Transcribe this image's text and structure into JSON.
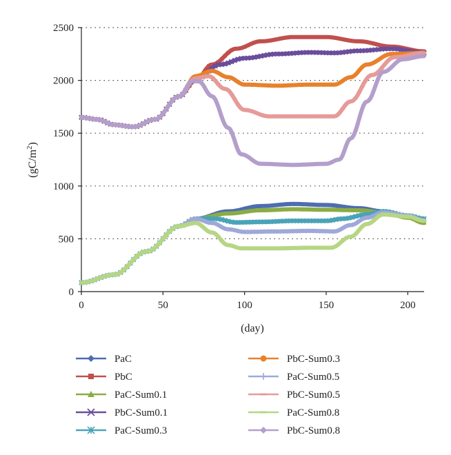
{
  "chart_data": {
    "type": "line",
    "title": "",
    "xlabel": "(day)",
    "ylabel_main": "(gC/m",
    "ylabel_sup": "2",
    "ylabel_close": ")",
    "xlim": [
      0,
      210
    ],
    "ylim": [
      0,
      2500
    ],
    "xticks": [
      0,
      50,
      100,
      150,
      200
    ],
    "yticks": [
      0,
      500,
      1000,
      1500,
      2000,
      2500
    ],
    "grid": "horizontal dotted",
    "legend_placement": "bottom",
    "series": [
      {
        "name": "PaC",
        "color": "#4e6db1",
        "marker": "diamond",
        "points": [
          [
            0,
            85
          ],
          [
            20,
            160
          ],
          [
            40,
            380
          ],
          [
            60,
            620
          ],
          [
            70,
            690
          ],
          [
            90,
            760
          ],
          [
            110,
            810
          ],
          [
            130,
            830
          ],
          [
            150,
            820
          ],
          [
            170,
            790
          ],
          [
            185,
            760
          ],
          [
            200,
            705
          ],
          [
            210,
            665
          ]
        ]
      },
      {
        "name": "PbC",
        "color": "#c0504d",
        "marker": "square",
        "points": [
          [
            0,
            1650
          ],
          [
            10,
            1630
          ],
          [
            20,
            1580
          ],
          [
            32,
            1560
          ],
          [
            45,
            1630
          ],
          [
            60,
            1850
          ],
          [
            70,
            2000
          ],
          [
            80,
            2150
          ],
          [
            95,
            2300
          ],
          [
            110,
            2370
          ],
          [
            130,
            2410
          ],
          [
            150,
            2410
          ],
          [
            170,
            2370
          ],
          [
            190,
            2320
          ],
          [
            210,
            2275
          ]
        ]
      },
      {
        "name": "PaC-Sum0.1",
        "color": "#8bac45",
        "marker": "triangle",
        "points": [
          [
            0,
            85
          ],
          [
            20,
            160
          ],
          [
            40,
            380
          ],
          [
            60,
            620
          ],
          [
            70,
            690
          ],
          [
            90,
            740
          ],
          [
            110,
            770
          ],
          [
            130,
            780
          ],
          [
            150,
            775
          ],
          [
            170,
            770
          ],
          [
            185,
            750
          ],
          [
            200,
            700
          ],
          [
            210,
            650
          ]
        ]
      },
      {
        "name": "PbC-Sum0.1",
        "color": "#6a4e9b",
        "marker": "x",
        "points": [
          [
            0,
            1650
          ],
          [
            10,
            1630
          ],
          [
            20,
            1580
          ],
          [
            32,
            1560
          ],
          [
            45,
            1630
          ],
          [
            60,
            1850
          ],
          [
            70,
            2010
          ],
          [
            85,
            2150
          ],
          [
            100,
            2210
          ],
          [
            120,
            2250
          ],
          [
            140,
            2265
          ],
          [
            155,
            2260
          ],
          [
            170,
            2280
          ],
          [
            190,
            2300
          ],
          [
            210,
            2260
          ]
        ]
      },
      {
        "name": "PaC-Sum0.3",
        "color": "#4aa3b8",
        "marker": "asterisk",
        "points": [
          [
            0,
            85
          ],
          [
            20,
            160
          ],
          [
            40,
            380
          ],
          [
            60,
            620
          ],
          [
            70,
            690
          ],
          [
            82,
            690
          ],
          [
            95,
            655
          ],
          [
            110,
            660
          ],
          [
            130,
            670
          ],
          [
            150,
            670
          ],
          [
            160,
            690
          ],
          [
            175,
            730
          ],
          [
            185,
            760
          ],
          [
            200,
            720
          ],
          [
            210,
            690
          ]
        ]
      },
      {
        "name": "PbC-Sum0.3",
        "color": "#e8812c",
        "marker": "circle",
        "points": [
          [
            0,
            1650
          ],
          [
            10,
            1630
          ],
          [
            20,
            1580
          ],
          [
            32,
            1560
          ],
          [
            45,
            1630
          ],
          [
            60,
            1850
          ],
          [
            70,
            2040
          ],
          [
            80,
            2090
          ],
          [
            90,
            2030
          ],
          [
            100,
            1960
          ],
          [
            120,
            1950
          ],
          [
            140,
            1960
          ],
          [
            155,
            1960
          ],
          [
            165,
            2030
          ],
          [
            175,
            2150
          ],
          [
            190,
            2250
          ],
          [
            210,
            2260
          ]
        ]
      },
      {
        "name": "PaC-Sum0.5",
        "color": "#9ea9d9",
        "marker": "plus",
        "points": [
          [
            0,
            85
          ],
          [
            20,
            160
          ],
          [
            40,
            380
          ],
          [
            60,
            620
          ],
          [
            70,
            690
          ],
          [
            80,
            650
          ],
          [
            90,
            590
          ],
          [
            100,
            565
          ],
          [
            120,
            570
          ],
          [
            140,
            575
          ],
          [
            155,
            570
          ],
          [
            165,
            630
          ],
          [
            175,
            700
          ],
          [
            185,
            750
          ],
          [
            200,
            720
          ],
          [
            210,
            675
          ]
        ]
      },
      {
        "name": "PbC-Sum0.5",
        "color": "#e59b98",
        "marker": "dash",
        "points": [
          [
            0,
            1650
          ],
          [
            10,
            1630
          ],
          [
            20,
            1580
          ],
          [
            32,
            1560
          ],
          [
            45,
            1630
          ],
          [
            60,
            1850
          ],
          [
            70,
            2020
          ],
          [
            78,
            2040
          ],
          [
            88,
            1920
          ],
          [
            100,
            1720
          ],
          [
            115,
            1660
          ],
          [
            135,
            1660
          ],
          [
            155,
            1660
          ],
          [
            165,
            1800
          ],
          [
            178,
            2050
          ],
          [
            192,
            2220
          ],
          [
            210,
            2260
          ]
        ]
      },
      {
        "name": "PaC-Sum0.8",
        "color": "#b6d684",
        "marker": "dash",
        "points": [
          [
            0,
            85
          ],
          [
            20,
            160
          ],
          [
            40,
            380
          ],
          [
            60,
            620
          ],
          [
            70,
            650
          ],
          [
            80,
            560
          ],
          [
            90,
            440
          ],
          [
            98,
            410
          ],
          [
            120,
            410
          ],
          [
            140,
            415
          ],
          [
            153,
            415
          ],
          [
            165,
            520
          ],
          [
            175,
            640
          ],
          [
            185,
            730
          ],
          [
            200,
            710
          ],
          [
            210,
            670
          ]
        ]
      },
      {
        "name": "PbC-Sum0.8",
        "color": "#b49fcb",
        "marker": "diamond",
        "points": [
          [
            0,
            1650
          ],
          [
            10,
            1630
          ],
          [
            20,
            1580
          ],
          [
            32,
            1560
          ],
          [
            45,
            1630
          ],
          [
            60,
            1850
          ],
          [
            68,
            1995
          ],
          [
            72,
            1990
          ],
          [
            80,
            1850
          ],
          [
            90,
            1550
          ],
          [
            98,
            1300
          ],
          [
            110,
            1210
          ],
          [
            130,
            1200
          ],
          [
            150,
            1210
          ],
          [
            158,
            1250
          ],
          [
            165,
            1450
          ],
          [
            175,
            1800
          ],
          [
            185,
            2080
          ],
          [
            197,
            2200
          ],
          [
            210,
            2230
          ]
        ]
      }
    ]
  }
}
